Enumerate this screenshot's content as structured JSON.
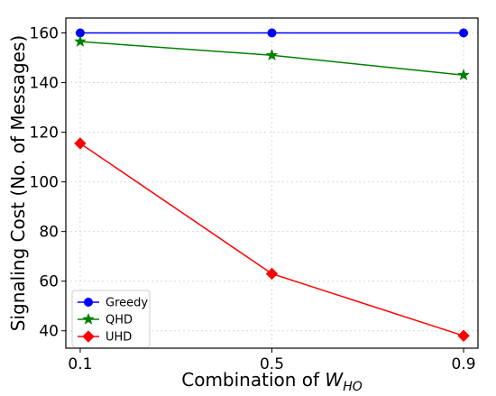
{
  "chart_data": {
    "type": "line",
    "x": [
      0.1,
      0.5,
      0.9
    ],
    "x_tick_labels": [
      "0.1",
      "0.5",
      "0.9"
    ],
    "y_ticks": [
      40,
      60,
      80,
      100,
      120,
      140,
      160
    ],
    "xlim": [
      0.07,
      0.93
    ],
    "ylim": [
      33,
      166
    ],
    "xlabel_prefix": "Combination of ",
    "xlabel_var": "W",
    "xlabel_sub": "HO",
    "ylabel": "Signaling Cost (No. of Messages)",
    "grid": true,
    "legend_position": "bottom-left",
    "series": [
      {
        "name": "Greedy",
        "values": [
          160,
          160,
          160
        ],
        "color": "#0000ff",
        "marker": "circle"
      },
      {
        "name": "QHD",
        "values": [
          156.5,
          151,
          143
        ],
        "color": "#008000",
        "marker": "star"
      },
      {
        "name": "UHD",
        "values": [
          115.5,
          63,
          38
        ],
        "color": "#ff0000",
        "marker": "diamond"
      }
    ]
  }
}
